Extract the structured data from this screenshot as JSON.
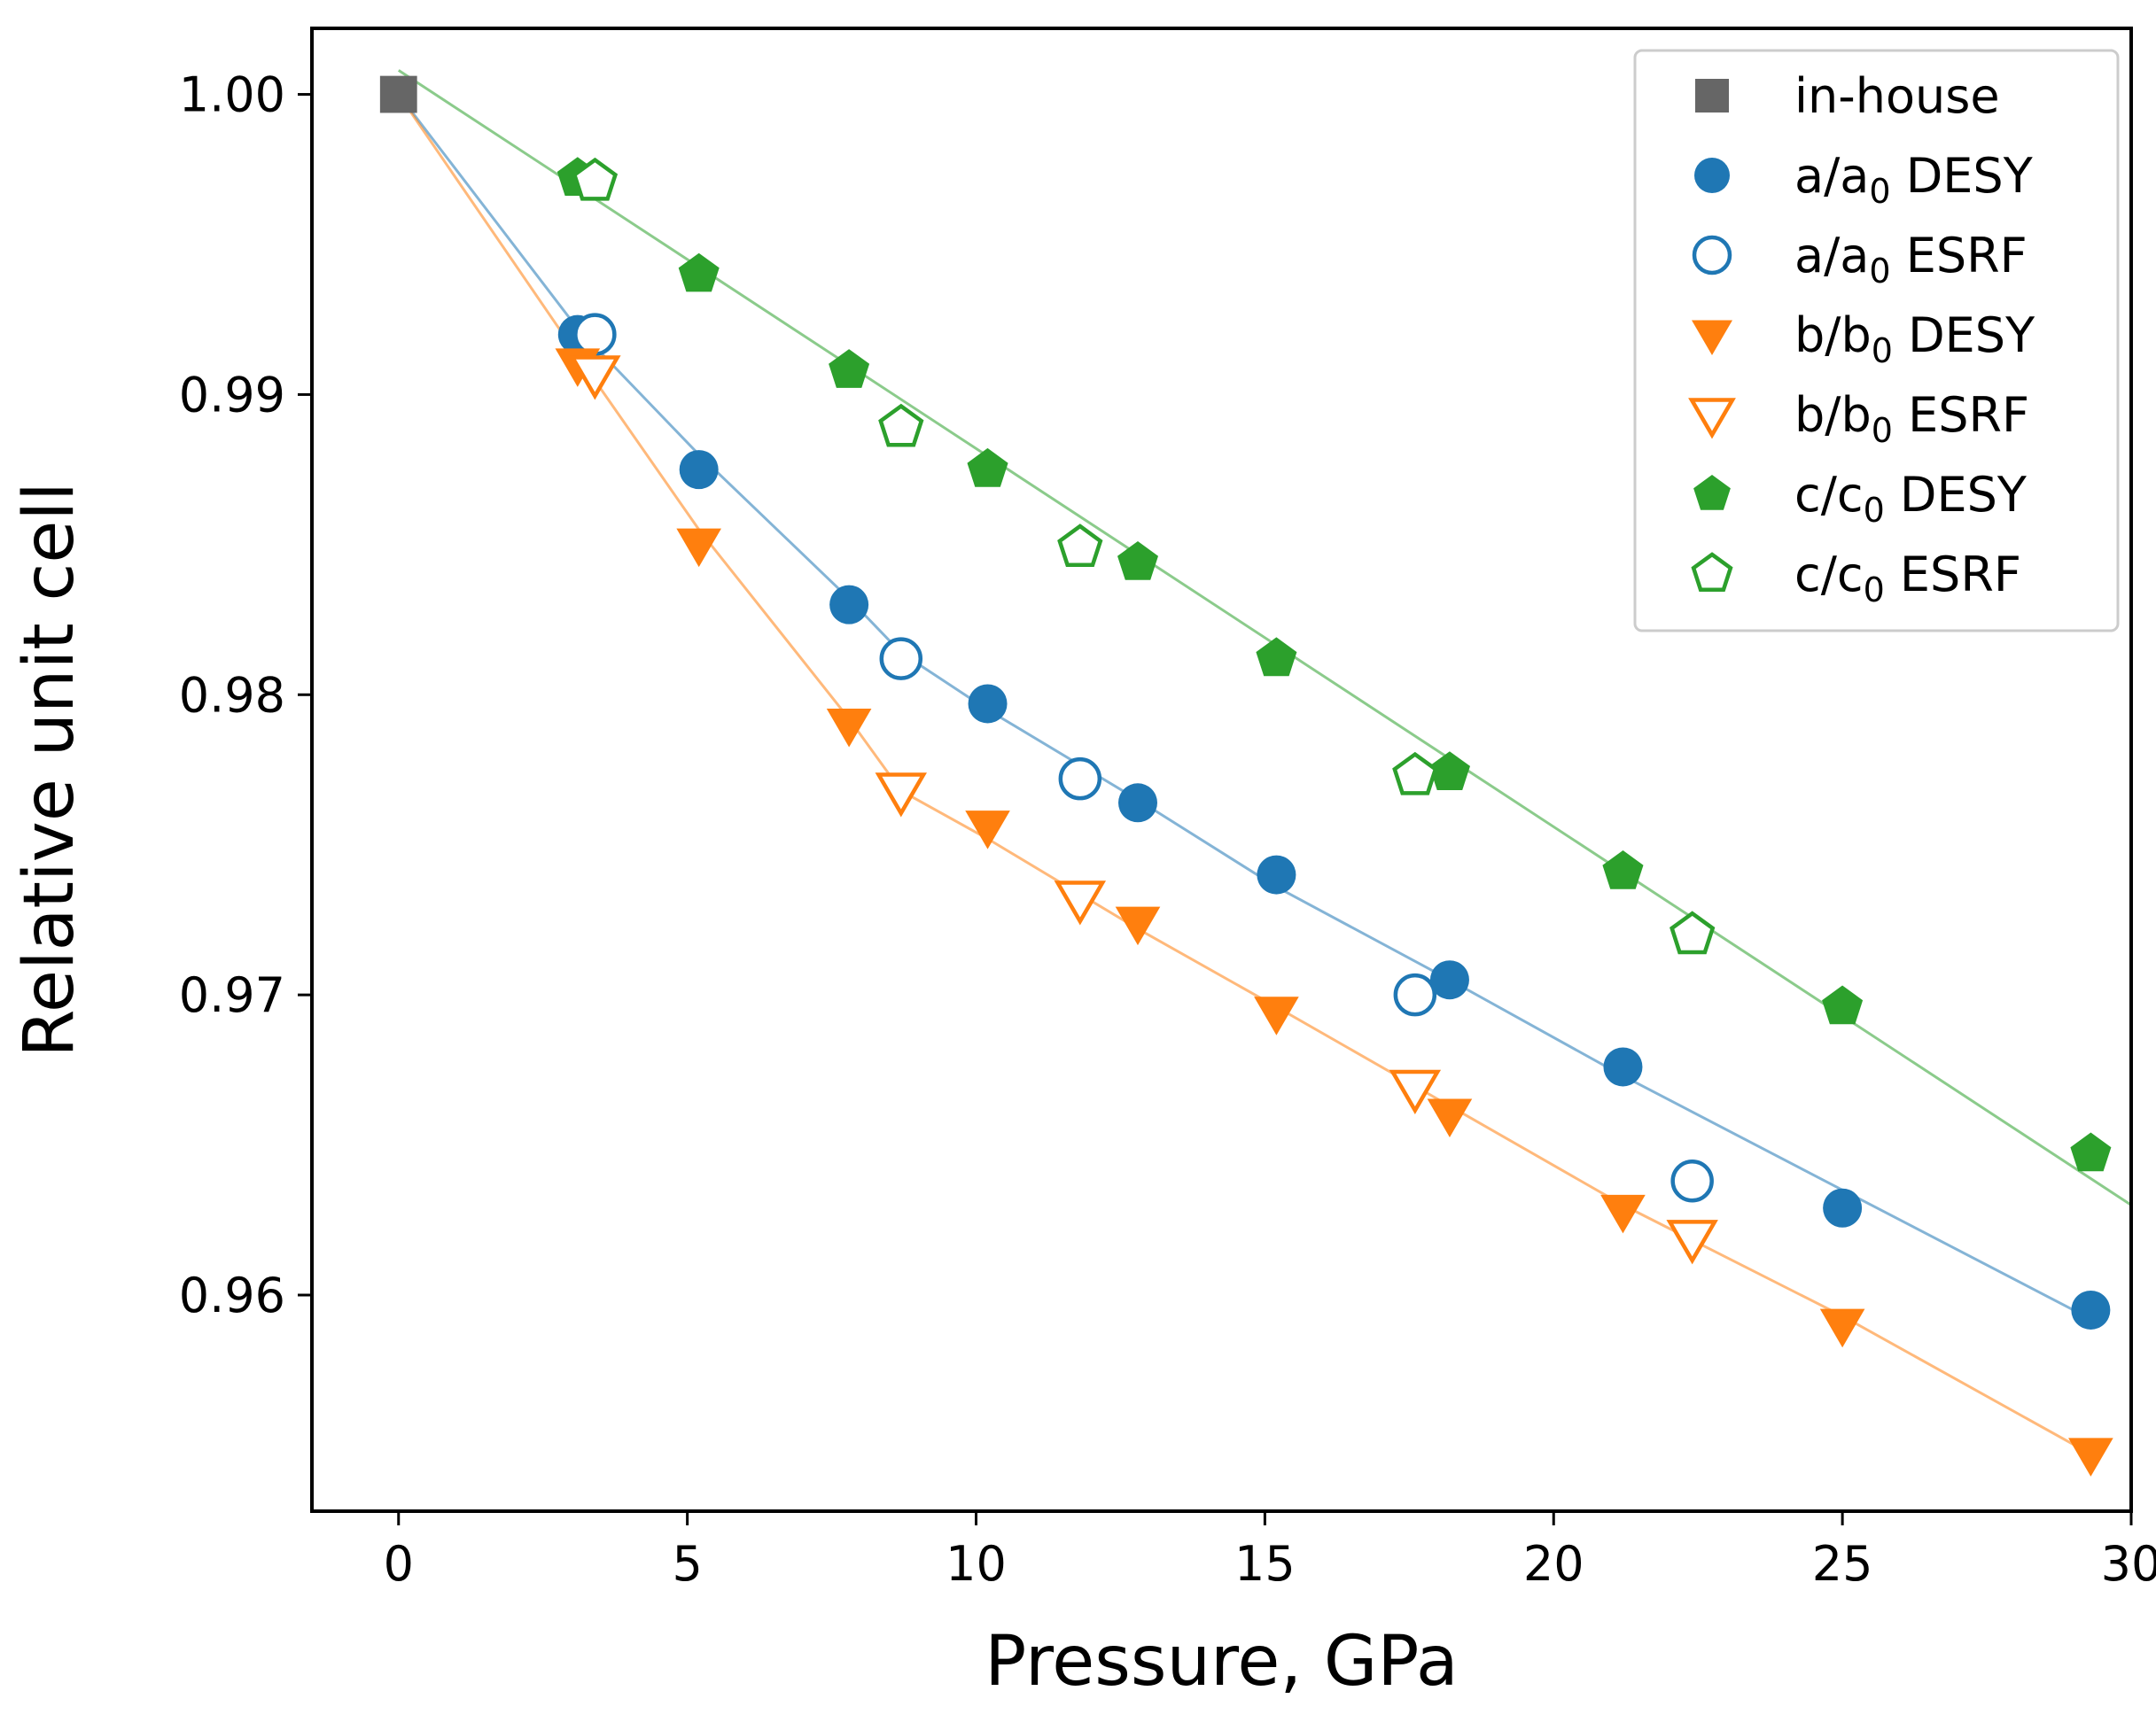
{
  "chart_data": {
    "type": "scatter",
    "xlabel": "Pressure, GPa",
    "ylabel": "Relative unit cell",
    "xlim": [
      -1.5,
      30
    ],
    "ylim": [
      0.9528,
      1.0022
    ],
    "xticks": [
      0,
      5,
      10,
      15,
      20,
      25,
      30
    ],
    "yticks": [
      0.96,
      0.97,
      0.98,
      0.99,
      1.0
    ],
    "xtick_labels": [
      "0",
      "5",
      "10",
      "15",
      "20",
      "25",
      "30"
    ],
    "ytick_labels": [
      "0.96",
      "0.97",
      "0.98",
      "0.99",
      "1.00"
    ],
    "grid": false,
    "legend_position": "top-right",
    "colors": {
      "blue": "#1f77b4",
      "orange": "#ff7f0e",
      "green": "#2ca02c",
      "gray": "#666666"
    },
    "series": [
      {
        "name": "in-house",
        "label_base": "in-house",
        "label_sub": "",
        "label_suffix": "",
        "marker": "square",
        "filled": true,
        "color": "#666666",
        "x": [
          0
        ],
        "y": [
          1.0
        ]
      },
      {
        "name": "a/a0 DESY",
        "label_base": "a/a",
        "label_sub": "0",
        "label_suffix": " DESY",
        "marker": "circle",
        "filled": true,
        "color": "#1f77b4",
        "x": [
          3.1,
          5.2,
          7.8,
          10.2,
          12.8,
          15.2,
          18.2,
          21.2,
          25.0,
          29.3
        ],
        "y": [
          0.992,
          0.9875,
          0.983,
          0.9797,
          0.9764,
          0.974,
          0.9705,
          0.9676,
          0.9629,
          0.9595
        ]
      },
      {
        "name": "a/a0 ESRF",
        "label_base": "a/a",
        "label_sub": "0",
        "label_suffix": " ESRF",
        "marker": "circle",
        "filled": false,
        "color": "#1f77b4",
        "x": [
          3.4,
          8.7,
          11.8,
          17.6,
          22.4
        ],
        "y": [
          0.992,
          0.9812,
          0.9772,
          0.97,
          0.9638
        ]
      },
      {
        "name": "b/b0 DESY",
        "label_base": "b/b",
        "label_sub": "0",
        "label_suffix": " DESY",
        "marker": "triangle-down",
        "filled": true,
        "color": "#ff7f0e",
        "x": [
          3.1,
          5.2,
          7.8,
          10.2,
          12.8,
          15.2,
          18.2,
          21.2,
          25.0,
          29.3
        ],
        "y": [
          0.991,
          0.985,
          0.979,
          0.9756,
          0.9724,
          0.9694,
          0.966,
          0.9628,
          0.959,
          0.9547
        ]
      },
      {
        "name": "b/b0 ESRF",
        "label_base": "b/b",
        "label_sub": "0",
        "label_suffix": " ESRF",
        "marker": "triangle-down",
        "filled": false,
        "color": "#ff7f0e",
        "x": [
          3.4,
          8.7,
          11.8,
          17.6,
          22.4
        ],
        "y": [
          0.9907,
          0.9768,
          0.9732,
          0.9669,
          0.9619
        ]
      },
      {
        "name": "c/c0 DESY",
        "label_base": "c/c",
        "label_sub": "0",
        "label_suffix": " DESY",
        "marker": "pentagon",
        "filled": true,
        "color": "#2ca02c",
        "x": [
          3.1,
          5.2,
          7.8,
          10.2,
          12.8,
          15.2,
          18.2,
          21.2,
          25.0,
          29.3
        ],
        "y": [
          0.9972,
          0.994,
          0.9908,
          0.9875,
          0.9844,
          0.9812,
          0.9774,
          0.9741,
          0.9696,
          0.9647
        ]
      },
      {
        "name": "c/c0 ESRF",
        "label_base": "c/c",
        "label_sub": "0",
        "label_suffix": " ESRF",
        "marker": "pentagon",
        "filled": false,
        "color": "#2ca02c",
        "x": [
          3.4,
          8.7,
          11.8,
          17.6,
          22.4
        ],
        "y": [
          0.9971,
          0.9889,
          0.9849,
          0.9773,
          0.972
        ]
      }
    ],
    "fit_lines": [
      {
        "color": "#1f77b4",
        "x": [
          0,
          3.1,
          5.2,
          7.8,
          8.7,
          10.2,
          12.8,
          15.2,
          18.2,
          21.2,
          25.0,
          29.3
        ],
        "y": [
          1.0,
          0.9922,
          0.988,
          0.9832,
          0.9814,
          0.9795,
          0.9765,
          0.9736,
          0.9705,
          0.9673,
          0.9635,
          0.9592
        ]
      },
      {
        "color": "#ff7f0e",
        "x": [
          0,
          3.1,
          5.2,
          7.8,
          8.7,
          10.2,
          12.8,
          15.2,
          18.2,
          21.2,
          25.0,
          29.3
        ],
        "y": [
          1.0,
          0.9913,
          0.9855,
          0.9792,
          0.9768,
          0.9752,
          0.9722,
          0.9696,
          0.9663,
          0.963,
          0.9593,
          0.9547
        ]
      },
      {
        "color": "#2ca02c",
        "x": [
          0,
          30.0
        ],
        "y": [
          1.0008,
          0.963
        ]
      }
    ]
  }
}
